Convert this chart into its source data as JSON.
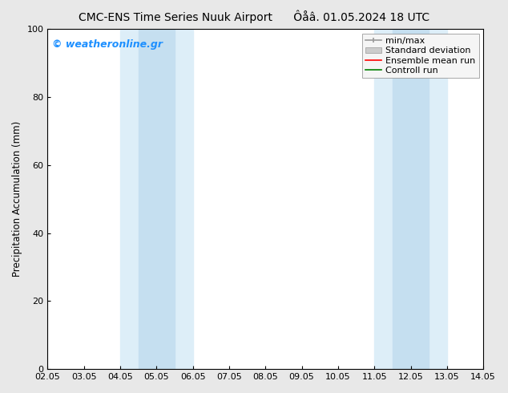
{
  "title_left": "CMC-ENS Time Series Nuuk Airport",
  "title_right": "Ôåâ. 01.05.2024 18 UTC",
  "ylabel": "Precipitation Accumulation (mm)",
  "ylim": [
    0,
    100
  ],
  "yticks": [
    0,
    20,
    40,
    60,
    80,
    100
  ],
  "xtick_labels": [
    "02.05",
    "03.05",
    "04.05",
    "05.05",
    "06.05",
    "07.05",
    "08.05",
    "09.05",
    "10.05",
    "11.05",
    "12.05",
    "13.05",
    "14.05"
  ],
  "xtick_positions": [
    0,
    1,
    2,
    3,
    4,
    5,
    6,
    7,
    8,
    9,
    10,
    11,
    12
  ],
  "shaded_bands": [
    {
      "x_start": 2.0,
      "x_end": 3.5,
      "color": "#d6e8f5"
    },
    {
      "x_start": 3.5,
      "x_end": 4.5,
      "color": "#c5dff0"
    },
    {
      "x_start": 9.0,
      "x_end": 10.0,
      "color": "#d6e8f5"
    },
    {
      "x_start": 10.0,
      "x_end": 11.0,
      "color": "#c5dff0"
    }
  ],
  "watermark_text": "© weatheronline.gr",
  "watermark_color": "#1e90ff",
  "background_color": "#e8e8e8",
  "plot_bg_color": "#ffffff",
  "legend_items": [
    {
      "label": "min/max",
      "color": "#999999",
      "type": "errorbar"
    },
    {
      "label": "Standard deviation",
      "color": "#cccccc",
      "type": "band"
    },
    {
      "label": "Ensemble mean run",
      "color": "#ff0000",
      "type": "line"
    },
    {
      "label": "Controll run",
      "color": "#008000",
      "type": "line"
    }
  ],
  "font_size_title": 10,
  "font_size_legend": 8,
  "font_size_ticks": 8,
  "font_size_ylabel": 8.5,
  "font_size_watermark": 9
}
